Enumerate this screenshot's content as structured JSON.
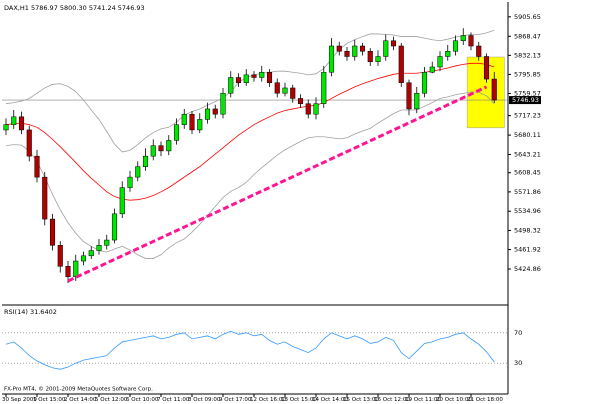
{
  "chart_data": {
    "type": "candlestick",
    "title": "DAX,H1 5786.97 5800.30 5741.24 5746.93",
    "categories": [
      "30 Sep 2009",
      null,
      null,
      null,
      "1 Oct 15:00",
      null,
      null,
      null,
      "2 Oct 14:00",
      null,
      null,
      null,
      "5 Oct 12:00",
      null,
      null,
      null,
      "6 Oct 10:00",
      null,
      null,
      null,
      "7 Oct 11:00",
      null,
      null,
      null,
      "8 Oct 09:00",
      null,
      null,
      null,
      "9 Oct 17:00",
      null,
      null,
      null,
      "12 Oct 16:00",
      null,
      null,
      null,
      "13 Oct 15:00",
      null,
      null,
      null,
      "14 Oct 14:00",
      null,
      null,
      null,
      "15 Oct 13:00",
      null,
      null,
      null,
      "16 Oct 12:00",
      null,
      null,
      null,
      "19 Oct 11:00",
      null,
      null,
      null,
      "20 Oct 10:00",
      null,
      null,
      null,
      "21 Oct 18:00",
      null,
      null,
      null
    ],
    "open": [
      5690,
      5700,
      5715,
      5690,
      5640,
      5600,
      5520,
      5470,
      5430,
      5410,
      5440,
      5450,
      5460,
      5470,
      5480,
      5530,
      5580,
      5600,
      5620,
      5640,
      5660,
      5650,
      5670,
      5700,
      5720,
      5690,
      5710,
      5730,
      5720,
      5760,
      5790,
      5780,
      5795,
      5790,
      5800,
      5780,
      5760,
      5770,
      5750,
      5740,
      5720,
      5740,
      5800,
      5850,
      5840,
      5830,
      5850,
      5840,
      5820,
      5830,
      5860,
      5850,
      5780,
      5730,
      5760,
      5800,
      5810,
      5830,
      5840,
      5860,
      5870,
      5850,
      5830,
      5786.97
    ],
    "high": [
      5712,
      5728,
      5725,
      5698,
      5652,
      5610,
      5530,
      5478,
      5440,
      5452,
      5458,
      5468,
      5482,
      5490,
      5540,
      5592,
      5612,
      5630,
      5655,
      5672,
      5668,
      5680,
      5712,
      5730,
      5726,
      5722,
      5742,
      5738,
      5770,
      5802,
      5798,
      5806,
      5802,
      5812,
      5806,
      5788,
      5780,
      5776,
      5758,
      5748,
      5752,
      5812,
      5865,
      5858,
      5848,
      5862,
      5856,
      5846,
      5842,
      5872,
      5868,
      5856,
      5786,
      5772,
      5810,
      5820,
      5840,
      5852,
      5870,
      5884,
      5876,
      5858,
      5836,
      5800.3
    ],
    "low": [
      5680,
      5692,
      5682,
      5630,
      5590,
      5508,
      5460,
      5418,
      5398,
      5402,
      5432,
      5444,
      5452,
      5462,
      5474,
      5522,
      5572,
      5592,
      5612,
      5632,
      5640,
      5642,
      5662,
      5692,
      5682,
      5684,
      5702,
      5712,
      5712,
      5752,
      5772,
      5774,
      5782,
      5782,
      5772,
      5752,
      5754,
      5742,
      5732,
      5712,
      5710,
      5732,
      5792,
      5832,
      5822,
      5822,
      5832,
      5812,
      5812,
      5822,
      5842,
      5772,
      5718,
      5722,
      5752,
      5798,
      5802,
      5822,
      5832,
      5852,
      5842,
      5822,
      5780,
      5741.24
    ],
    "close": [
      5700,
      5715,
      5690,
      5640,
      5600,
      5520,
      5470,
      5430,
      5410,
      5440,
      5450,
      5460,
      5470,
      5480,
      5530,
      5580,
      5600,
      5620,
      5640,
      5660,
      5650,
      5670,
      5700,
      5720,
      5690,
      5710,
      5730,
      5720,
      5760,
      5790,
      5780,
      5795,
      5790,
      5800,
      5780,
      5760,
      5770,
      5750,
      5740,
      5720,
      5740,
      5800,
      5850,
      5840,
      5830,
      5850,
      5840,
      5820,
      5830,
      5860,
      5850,
      5780,
      5730,
      5760,
      5800,
      5810,
      5830,
      5840,
      5860,
      5870,
      5850,
      5830,
      5786.97,
      5746.93
    ],
    "up_color": "#00e600",
    "down_color": "#b00000",
    "ylim": [
      5360,
      5932
    ],
    "yticks": [
      5905.65,
      5868.47,
      5832.13,
      5795.85,
      5759.57,
      5717.23,
      5680.11,
      5643.21,
      5608.45,
      5571.86,
      5534.96,
      5498.32,
      5461.92,
      5424.86
    ],
    "last_price": 5746.93,
    "ma": {
      "color": "#ff0000",
      "values": [
        5700,
        5702,
        5703,
        5700,
        5695,
        5685,
        5672,
        5658,
        5643,
        5628,
        5612,
        5598,
        5585,
        5572,
        5563,
        5558,
        5556,
        5557,
        5560,
        5565,
        5572,
        5580,
        5590,
        5600,
        5610,
        5620,
        5632,
        5644,
        5656,
        5668,
        5680,
        5690,
        5700,
        5708,
        5715,
        5722,
        5727,
        5730,
        5733,
        5735,
        5737,
        5742,
        5750,
        5758,
        5765,
        5772,
        5778,
        5783,
        5788,
        5792,
        5796,
        5798,
        5798,
        5798,
        5800,
        5802,
        5805,
        5808,
        5812,
        5815,
        5817,
        5817,
        5815,
        5810
      ]
    },
    "bands": {
      "color": "#a0a0a0",
      "upper": [
        5740,
        5742,
        5745,
        5750,
        5760,
        5770,
        5777,
        5778,
        5773,
        5763,
        5747,
        5728,
        5710,
        5687,
        5663,
        5648,
        5651,
        5662,
        5675,
        5685,
        5692,
        5695,
        5705,
        5718,
        5725,
        5730,
        5737,
        5744,
        5751,
        5763,
        5780,
        5790,
        5795,
        5798,
        5800,
        5802,
        5802,
        5800,
        5798,
        5795,
        5797,
        5807,
        5825,
        5843,
        5855,
        5862,
        5868,
        5873,
        5873,
        5872,
        5871,
        5868,
        5868,
        5868,
        5865,
        5862,
        5860,
        5863,
        5867,
        5870,
        5872,
        5872,
        5875,
        5880
      ],
      "lower": [
        5660,
        5662,
        5661,
        5650,
        5630,
        5600,
        5567,
        5538,
        5513,
        5493,
        5477,
        5468,
        5460,
        5457,
        5463,
        5468,
        5461,
        5452,
        5445,
        5445,
        5452,
        5465,
        5475,
        5482,
        5495,
        5510,
        5527,
        5544,
        5561,
        5573,
        5580,
        5590,
        5605,
        5618,
        5630,
        5642,
        5652,
        5660,
        5668,
        5675,
        5677,
        5677,
        5675,
        5673,
        5675,
        5682,
        5688,
        5693,
        5703,
        5712,
        5721,
        5728,
        5728,
        5728,
        5735,
        5742,
        5750,
        5753,
        5757,
        5760,
        5762,
        5762,
        5755,
        5740
      ]
    },
    "trendline": {
      "color": "#ff1493",
      "x": [
        8,
        62
      ],
      "y": [
        5402,
        5772
      ]
    },
    "highlight": {
      "color": "#ffff00",
      "x": [
        60,
        63
      ],
      "y": [
        5694,
        5829
      ]
    },
    "rsi": {
      "title": "RSI(14) 31.6402",
      "color": "#3399ff",
      "ylim": [
        0,
        100
      ],
      "yticks": [
        70,
        30
      ],
      "values": [
        55,
        58,
        50,
        40,
        33,
        28,
        24,
        22,
        25,
        30,
        34,
        36,
        38,
        40,
        50,
        58,
        60,
        62,
        64,
        66,
        62,
        64,
        68,
        70,
        62,
        64,
        66,
        62,
        68,
        72,
        68,
        70,
        66,
        68,
        60,
        55,
        58,
        52,
        48,
        44,
        50,
        62,
        70,
        66,
        62,
        66,
        62,
        56,
        58,
        64,
        60,
        44,
        36,
        46,
        56,
        58,
        62,
        64,
        68,
        70,
        62,
        55,
        45,
        31.6402
      ]
    },
    "footer": "FX-Pro MT4, © 2001-2009 MetaQuotes Software Corp."
  }
}
